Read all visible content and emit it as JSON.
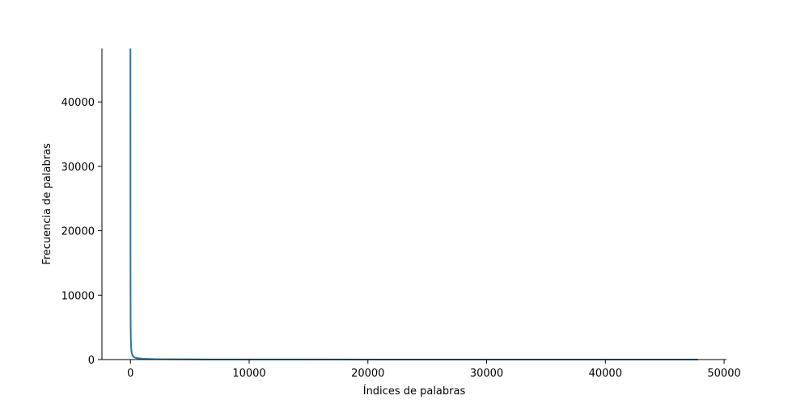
{
  "chart_data": {
    "type": "line",
    "xlabel": "Índices de palabras",
    "ylabel": "Frecuencia de palabras",
    "xlim": [
      -2400,
      50200
    ],
    "ylim": [
      0,
      48300
    ],
    "xticks": [
      0,
      10000,
      20000,
      30000,
      40000,
      50000
    ],
    "yticks": [
      0,
      10000,
      20000,
      30000,
      40000
    ],
    "spines": [
      "left",
      "bottom"
    ],
    "grid": false,
    "series": [
      {
        "color": "#1f77b4",
        "x": [
          0,
          5,
          10,
          20,
          30,
          50,
          75,
          100,
          150,
          200,
          300,
          500,
          1000,
          2000,
          5000,
          10000,
          20000,
          30000,
          40000,
          47800
        ],
        "y": [
          48300,
          16000,
          9500,
          5200,
          3500,
          2200,
          1500,
          1100,
          750,
          560,
          380,
          230,
          120,
          60,
          25,
          12,
          6,
          4,
          3,
          1
        ]
      }
    ]
  }
}
